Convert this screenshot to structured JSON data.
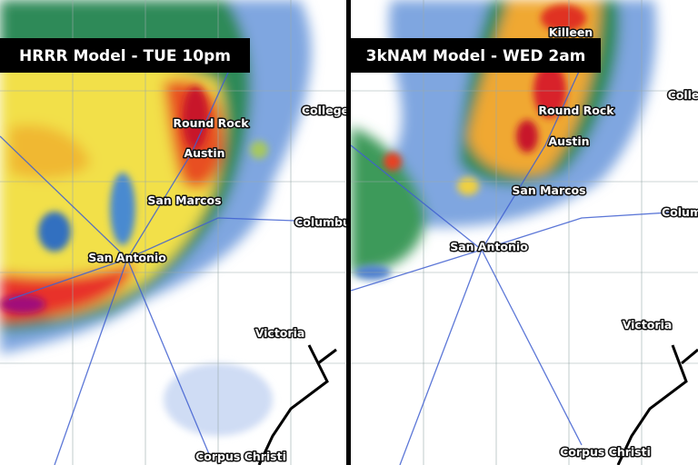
{
  "panels": [
    {
      "title": "HRRR Model - TUE 10pm",
      "cities": [
        "Round Rock",
        "Austin",
        "San Marcos",
        "San Antonio",
        "College",
        "Columbu",
        "Victoria",
        "Corpus Christi"
      ]
    },
    {
      "title": "3kNAM Model - WED 2am",
      "cities": [
        "Killeen",
        "Colle",
        "Round Rock",
        "Austin",
        "San Marcos",
        "San Antonio",
        "Colum",
        "Victoria",
        "Corpus Christi"
      ]
    }
  ]
}
